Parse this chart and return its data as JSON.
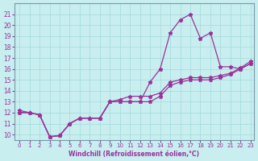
{
  "title": "",
  "xlabel": "Windchill (Refroidissement éolien,°C)",
  "ylabel": "",
  "background_color": "#c8eef0",
  "line_color": "#993399",
  "xlim": [
    -0.5,
    23.3
  ],
  "ylim": [
    9.5,
    22
  ],
  "xticks": [
    0,
    1,
    2,
    3,
    4,
    5,
    6,
    7,
    8,
    9,
    10,
    11,
    12,
    13,
    14,
    15,
    16,
    17,
    18,
    19,
    20,
    21,
    22,
    23
  ],
  "yticks": [
    10,
    11,
    12,
    13,
    14,
    15,
    16,
    17,
    18,
    19,
    20,
    21
  ],
  "grid_color": "#aadddd",
  "line1_x": [
    0,
    1,
    2,
    3,
    4,
    5,
    6,
    7,
    8,
    9,
    10,
    11,
    12,
    13,
    14,
    15,
    16,
    17,
    18,
    19,
    20,
    21,
    22,
    23
  ],
  "line1_y": [
    12.0,
    12.0,
    11.8,
    9.8,
    9.9,
    11.0,
    11.5,
    11.5,
    11.5,
    13.0,
    13.0,
    13.0,
    13.0,
    14.8,
    16.0,
    19.3,
    20.5,
    21.0,
    18.8,
    19.3,
    16.2,
    16.2,
    16.0,
    16.5
  ],
  "line2_x": [
    0,
    1,
    2,
    3,
    4,
    5,
    6,
    7,
    8,
    9,
    10,
    11,
    12,
    13,
    14,
    15,
    16,
    17,
    18,
    19,
    20,
    21,
    22,
    23
  ],
  "line2_y": [
    12.0,
    12.0,
    11.8,
    9.8,
    9.9,
    11.0,
    11.5,
    11.5,
    11.5,
    13.0,
    13.0,
    13.0,
    13.0,
    13.0,
    13.5,
    14.5,
    14.8,
    15.0,
    15.0,
    15.0,
    15.2,
    15.5,
    16.0,
    16.5
  ],
  "line3_x": [
    0,
    1,
    2,
    3,
    4,
    5,
    6,
    7,
    8,
    9,
    10,
    11,
    12,
    13,
    14,
    15,
    16,
    17,
    18,
    19,
    20,
    21,
    22,
    23
  ],
  "line3_y": [
    12.2,
    12.0,
    11.8,
    9.8,
    9.9,
    11.0,
    11.5,
    11.5,
    11.5,
    13.0,
    13.2,
    13.5,
    13.5,
    13.5,
    13.8,
    14.8,
    15.0,
    15.2,
    15.2,
    15.2,
    15.4,
    15.6,
    16.1,
    16.7
  ]
}
